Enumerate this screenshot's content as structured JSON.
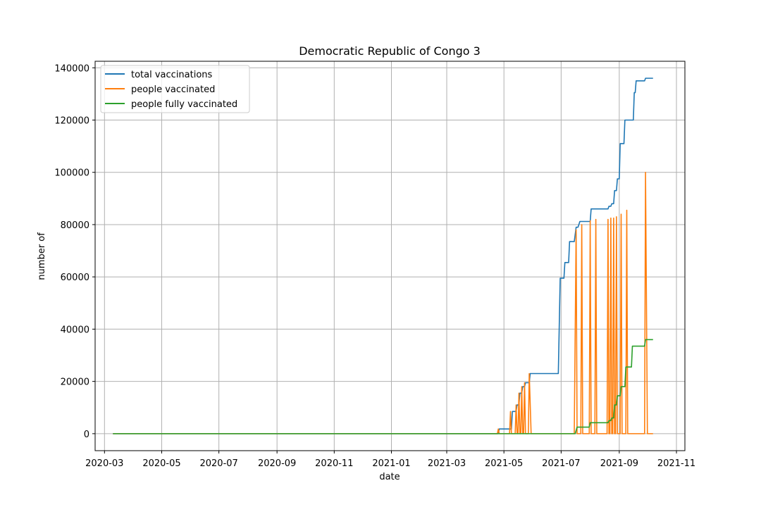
{
  "chart_data": {
    "type": "line",
    "title": "Democratic Republic of Congo 3",
    "xlabel": "date",
    "ylabel": "number of",
    "x_axis_type": "date",
    "xlim": [
      "2020-02-20",
      "2021-11-10"
    ],
    "ylim": [
      -6500,
      142500
    ],
    "x_ticks": [
      "2020-03",
      "2020-05",
      "2020-07",
      "2020-09",
      "2020-11",
      "2021-01",
      "2021-03",
      "2021-05",
      "2021-07",
      "2021-09",
      "2021-11"
    ],
    "y_ticks": [
      0,
      20000,
      40000,
      60000,
      80000,
      100000,
      120000,
      140000
    ],
    "grid": true,
    "legend_position": "upper-left",
    "series": [
      {
        "name": "total vaccinations",
        "color": "#1f77b4",
        "points": [
          [
            "2020-03-10",
            0
          ],
          [
            "2021-04-25",
            0
          ],
          [
            "2021-04-26",
            1800
          ],
          [
            "2021-05-09",
            1800
          ],
          [
            "2021-05-10",
            8500
          ],
          [
            "2021-05-14",
            8500
          ],
          [
            "2021-05-15",
            11000
          ],
          [
            "2021-05-17",
            11000
          ],
          [
            "2021-05-18",
            15500
          ],
          [
            "2021-05-20",
            15500
          ],
          [
            "2021-05-21",
            18000
          ],
          [
            "2021-05-23",
            18000
          ],
          [
            "2021-05-24",
            19500
          ],
          [
            "2021-05-28",
            19500
          ],
          [
            "2021-05-29",
            23000
          ],
          [
            "2021-06-28",
            23000
          ],
          [
            "2021-06-30",
            59500
          ],
          [
            "2021-07-04",
            59500
          ],
          [
            "2021-07-05",
            65500
          ],
          [
            "2021-07-09",
            65500
          ],
          [
            "2021-07-10",
            73500
          ],
          [
            "2021-07-15",
            73500
          ],
          [
            "2021-07-17",
            79000
          ],
          [
            "2021-07-19",
            79000
          ],
          [
            "2021-07-21",
            81200
          ],
          [
            "2021-08-01",
            81200
          ],
          [
            "2021-08-02",
            86000
          ],
          [
            "2021-08-20",
            86000
          ],
          [
            "2021-08-21",
            87000
          ],
          [
            "2021-08-23",
            87000
          ],
          [
            "2021-08-24",
            88000
          ],
          [
            "2021-08-26",
            88000
          ],
          [
            "2021-08-27",
            93000
          ],
          [
            "2021-08-29",
            93000
          ],
          [
            "2021-08-30",
            97500
          ],
          [
            "2021-09-01",
            97500
          ],
          [
            "2021-09-02",
            111000
          ],
          [
            "2021-09-06",
            111000
          ],
          [
            "2021-09-07",
            120000
          ],
          [
            "2021-09-16",
            120000
          ],
          [
            "2021-09-17",
            130500
          ],
          [
            "2021-09-18",
            130500
          ],
          [
            "2021-09-19",
            135000
          ],
          [
            "2021-09-28",
            135000
          ],
          [
            "2021-09-29",
            136000
          ],
          [
            "2021-10-07",
            136000
          ]
        ]
      },
      {
        "name": "people vaccinated",
        "color": "#ff7f0e",
        "points": [
          [
            "2020-03-10",
            0
          ],
          [
            "2021-04-24",
            0
          ],
          [
            "2021-04-25",
            1800
          ],
          [
            "2021-04-26",
            0
          ],
          [
            "2021-05-07",
            0
          ],
          [
            "2021-05-08",
            8500
          ],
          [
            "2021-05-09",
            0
          ],
          [
            "2021-05-13",
            0
          ],
          [
            "2021-05-14",
            11000
          ],
          [
            "2021-05-15",
            0
          ],
          [
            "2021-05-16",
            0
          ],
          [
            "2021-05-17",
            15500
          ],
          [
            "2021-05-18",
            0
          ],
          [
            "2021-05-19",
            0
          ],
          [
            "2021-05-20",
            18000
          ],
          [
            "2021-05-21",
            0
          ],
          [
            "2021-05-22",
            0
          ],
          [
            "2021-05-23",
            19500
          ],
          [
            "2021-05-24",
            0
          ],
          [
            "2021-05-27",
            0
          ],
          [
            "2021-05-28",
            23000
          ],
          [
            "2021-05-30",
            0
          ],
          [
            "2021-07-15",
            0
          ],
          [
            "2021-07-17",
            78000
          ],
          [
            "2021-07-18",
            0
          ],
          [
            "2021-07-22",
            0
          ],
          [
            "2021-07-23",
            80000
          ],
          [
            "2021-07-24",
            0
          ],
          [
            "2021-07-31",
            0
          ],
          [
            "2021-08-01",
            81500
          ],
          [
            "2021-08-02",
            0
          ],
          [
            "2021-08-06",
            0
          ],
          [
            "2021-08-07",
            82000
          ],
          [
            "2021-08-08",
            0
          ],
          [
            "2021-08-19",
            0
          ],
          [
            "2021-08-20",
            82000
          ],
          [
            "2021-08-21",
            0
          ],
          [
            "2021-08-22",
            0
          ],
          [
            "2021-08-23",
            82500
          ],
          [
            "2021-08-24",
            0
          ],
          [
            "2021-08-25",
            0
          ],
          [
            "2021-08-26",
            82500
          ],
          [
            "2021-08-27",
            0
          ],
          [
            "2021-08-28",
            0
          ],
          [
            "2021-08-29",
            83000
          ],
          [
            "2021-08-30",
            0
          ],
          [
            "2021-09-02",
            0
          ],
          [
            "2021-09-03",
            84000
          ],
          [
            "2021-09-04",
            0
          ],
          [
            "2021-09-08",
            0
          ],
          [
            "2021-09-09",
            85500
          ],
          [
            "2021-09-10",
            0
          ],
          [
            "2021-09-28",
            0
          ],
          [
            "2021-09-29",
            100000
          ],
          [
            "2021-10-01",
            0
          ],
          [
            "2021-10-07",
            0
          ]
        ]
      },
      {
        "name": "people fully vaccinated",
        "color": "#2ca02c",
        "points": [
          [
            "2020-03-10",
            0
          ],
          [
            "2021-07-16",
            0
          ],
          [
            "2021-07-18",
            2500
          ],
          [
            "2021-07-31",
            2500
          ],
          [
            "2021-08-01",
            4200
          ],
          [
            "2021-08-20",
            4200
          ],
          [
            "2021-08-21",
            5000
          ],
          [
            "2021-08-23",
            5000
          ],
          [
            "2021-08-24",
            6000
          ],
          [
            "2021-08-26",
            6000
          ],
          [
            "2021-08-27",
            11000
          ],
          [
            "2021-08-29",
            11000
          ],
          [
            "2021-08-30",
            14500
          ],
          [
            "2021-09-02",
            14500
          ],
          [
            "2021-09-03",
            18000
          ],
          [
            "2021-09-07",
            18000
          ],
          [
            "2021-09-08",
            25500
          ],
          [
            "2021-09-14",
            25500
          ],
          [
            "2021-09-15",
            33500
          ],
          [
            "2021-09-28",
            33500
          ],
          [
            "2021-09-29",
            36000
          ],
          [
            "2021-10-07",
            36000
          ]
        ]
      }
    ]
  }
}
